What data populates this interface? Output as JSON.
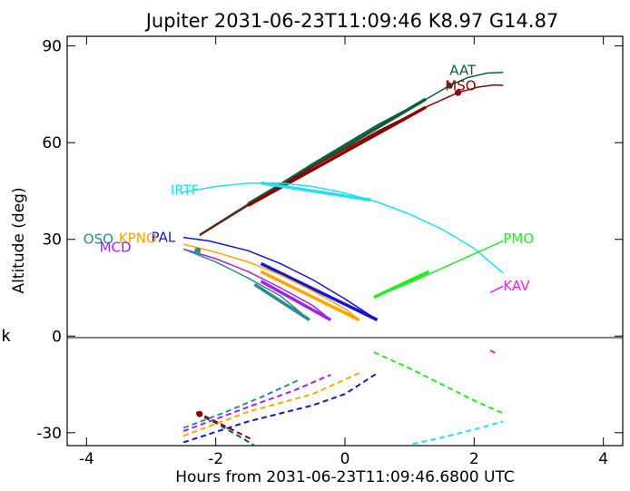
{
  "chart_data": {
    "type": "line",
    "title": "Jupiter 2031-06-23T11:09:46  K8.97  G14.87",
    "xlabel": "Hours from 2031-06-23T11:09:46.6800 UTC",
    "ylabel": "Altitude (deg)",
    "side_label": "k",
    "xlim": [
      -4.3,
      4.3
    ],
    "ylim": [
      -34,
      93
    ],
    "xticks": [
      -4,
      -2,
      0,
      2,
      4
    ],
    "yticks": [
      -30,
      0,
      30,
      60,
      90
    ],
    "grid": false,
    "legend": "labels at curve ends",
    "series": [
      {
        "name": "AAT",
        "color": "#0b5e3b",
        "label_at": [
          1.62,
          82.5
        ],
        "line": [
          [
            -2.25,
            31.5
          ],
          [
            -1.5,
            41
          ],
          [
            -0.5,
            53.5
          ],
          [
            0.5,
            65.5
          ],
          [
            1.3,
            74
          ],
          [
            1.62,
            77.7
          ],
          [
            1.9,
            80.2
          ],
          [
            2.2,
            81.6
          ],
          [
            2.45,
            81.8
          ]
        ],
        "thick": [
          [
            -1.5,
            41
          ],
          [
            1.25,
            73.5
          ]
        ],
        "dot": [
          1.62,
          77.7
        ],
        "dashed": [
          [
            -2.3,
            -24
          ],
          [
            -1.95,
            -27.5
          ],
          [
            -1.65,
            -31
          ],
          [
            -1.4,
            -34
          ]
        ]
      },
      {
        "name": "MSO",
        "color": "#8b0000",
        "label_at": [
          1.55,
          77.7
        ],
        "line": [
          [
            -2.25,
            31.2
          ],
          [
            -1.5,
            40.5
          ],
          [
            -0.5,
            52.5
          ],
          [
            0.5,
            63.5
          ],
          [
            1.3,
            71.5
          ],
          [
            1.75,
            75.5
          ],
          [
            2.05,
            77.2
          ],
          [
            2.3,
            77.9
          ],
          [
            2.45,
            77.8
          ]
        ],
        "thick": [
          [
            -1.5,
            40.5
          ],
          [
            1.25,
            71
          ]
        ],
        "dot": [
          1.75,
          75.5
        ],
        "dashed": [
          [
            -2.3,
            -23.6
          ],
          [
            -2.0,
            -26.5
          ],
          [
            -1.7,
            -29.5
          ],
          [
            -1.45,
            -32
          ]
        ]
      },
      {
        "name": "IRTF",
        "color": "#22e0f0",
        "label_at": [
          -2.7,
          45.3
        ],
        "line": [
          [
            -2.55,
            44.5
          ],
          [
            -2.0,
            46.4
          ],
          [
            -1.5,
            47.4
          ],
          [
            -1.0,
            47.5
          ],
          [
            -0.5,
            46.4
          ],
          [
            0.0,
            44.4
          ],
          [
            0.5,
            41.6
          ],
          [
            1.0,
            37.8
          ],
          [
            1.5,
            33.2
          ],
          [
            2.0,
            27.2
          ],
          [
            2.45,
            19.5
          ]
        ],
        "thick": [
          [
            -1.3,
            47.5
          ],
          [
            0.4,
            42.2
          ]
        ],
        "dashed": [
          [
            1.05,
            -33.5
          ],
          [
            1.5,
            -31.5
          ],
          [
            2.0,
            -29
          ],
          [
            2.45,
            -26.5
          ]
        ]
      },
      {
        "name": "PAL",
        "color": "#1414d4",
        "label_at": [
          -3.0,
          30.6
        ],
        "line": [
          [
            -2.5,
            30.6
          ],
          [
            -2.1,
            29.5
          ],
          [
            -1.5,
            26.5
          ],
          [
            -1.0,
            22.5
          ],
          [
            -0.5,
            17.5
          ],
          [
            0.0,
            11.5
          ],
          [
            0.5,
            5
          ]
        ],
        "thick": [
          [
            -1.3,
            22.5
          ],
          [
            0.5,
            5
          ]
        ],
        "dashed": [
          [
            -2.5,
            -33
          ],
          [
            -1.5,
            -26.5
          ],
          [
            -0.5,
            -21.5
          ],
          [
            0.0,
            -18
          ],
          [
            0.5,
            -11.5
          ]
        ]
      },
      {
        "name": "KPNO",
        "color": "#ffa500",
        "label_at": [
          -3.5,
          30.3
        ],
        "line": [
          [
            -2.5,
            28.5
          ],
          [
            -2.0,
            26
          ],
          [
            -1.5,
            23
          ],
          [
            -1.0,
            19
          ],
          [
            -0.5,
            14
          ],
          [
            0.0,
            8.5
          ],
          [
            0.22,
            5
          ]
        ],
        "thick": [
          [
            -1.3,
            20
          ],
          [
            0.22,
            5
          ]
        ],
        "dashed": [
          [
            -2.5,
            -31
          ],
          [
            -1.5,
            -23.5
          ],
          [
            -0.5,
            -18
          ],
          [
            0.22,
            -11.5
          ]
        ]
      },
      {
        "name": "MCD",
        "color": "#a020f0",
        "label_at": [
          -3.8,
          27.5
        ],
        "line": [
          [
            -2.5,
            27
          ],
          [
            -2.0,
            24
          ],
          [
            -1.5,
            20
          ],
          [
            -1.0,
            15
          ],
          [
            -0.5,
            9.5
          ],
          [
            -0.22,
            5
          ]
        ],
        "thick": [
          [
            -1.3,
            17
          ],
          [
            -0.22,
            5
          ]
        ],
        "dashed": [
          [
            -2.5,
            -29.5
          ],
          [
            -1.5,
            -22
          ],
          [
            -0.8,
            -17
          ],
          [
            -0.22,
            -12
          ]
        ]
      },
      {
        "name": "OSO",
        "color": "#2e8b8b",
        "label_at": [
          -4.05,
          30.0
        ],
        "line": [
          [
            -2.5,
            27
          ],
          [
            -2.0,
            23
          ],
          [
            -1.5,
            18
          ],
          [
            -1.0,
            12.5
          ],
          [
            -0.55,
            5
          ]
        ],
        "thick": [
          [
            -1.4,
            16
          ],
          [
            -0.55,
            5
          ]
        ],
        "dot": [
          -2.28,
          26.5
        ],
        "dashed": [
          [
            -2.5,
            -28.5
          ],
          [
            -1.9,
            -24
          ],
          [
            -1.3,
            -19
          ],
          [
            -0.7,
            -13.5
          ]
        ]
      },
      {
        "name": "PMO",
        "color": "#22ee22",
        "label_at": [
          2.45,
          30.2
        ],
        "line": [
          [
            0.45,
            12
          ],
          [
            1.0,
            16.5
          ],
          [
            1.5,
            21
          ],
          [
            2.0,
            25.5
          ],
          [
            2.45,
            29.5
          ]
        ],
        "thick": [
          [
            0.45,
            12
          ],
          [
            1.3,
            20
          ]
        ],
        "dashed": [
          [
            0.45,
            -5
          ],
          [
            1.0,
            -10
          ],
          [
            1.5,
            -15
          ],
          [
            2.0,
            -20
          ],
          [
            2.45,
            -24
          ]
        ]
      },
      {
        "name": "KAV",
        "color": "#ee22ee",
        "label_at": [
          2.45,
          15.5
        ],
        "line": [
          [
            2.25,
            13.5
          ],
          [
            2.45,
            15.5
          ]
        ],
        "dashed": [
          [
            2.25,
            -4.5
          ],
          [
            2.35,
            -5.5
          ]
        ]
      }
    ]
  }
}
